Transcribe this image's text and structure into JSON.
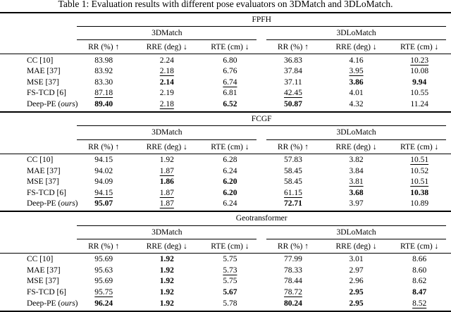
{
  "title": "Table 1: Evaluation results with different pose evaluators on 3DMatch and 3DLoMatch.",
  "columns": {
    "group_left": "3DMatch",
    "group_right": "3DLoMatch",
    "metrics": [
      "RR (%) ↑",
      "RRE (deg) ↓",
      "RTE (cm) ↓"
    ]
  },
  "chart_data": {
    "type": "table",
    "title": "Evaluation results with different pose evaluators on 3DMatch and 3DLoMatch",
    "column_groups": [
      "3DMatch",
      "3DLoMatch"
    ],
    "metric_labels": [
      "RR (%) ↑",
      "RRE (deg) ↓",
      "RTE (cm) ↓"
    ]
  },
  "sections": [
    {
      "name": "FPFH",
      "rows": [
        {
          "method": "CC [10]",
          "cells": [
            {
              "v": "83.98"
            },
            {
              "v": "2.24"
            },
            {
              "v": "6.80"
            },
            {
              "v": "36.83"
            },
            {
              "v": "4.16"
            },
            {
              "v": "10.23",
              "style": "underline"
            }
          ]
        },
        {
          "method": "MAE [37]",
          "cells": [
            {
              "v": "83.92"
            },
            {
              "v": "2.18",
              "style": "underline"
            },
            {
              "v": "6.76"
            },
            {
              "v": "37.84"
            },
            {
              "v": "3.95",
              "style": "underline"
            },
            {
              "v": "10.08"
            }
          ]
        },
        {
          "method": "MSE [37]",
          "cells": [
            {
              "v": "83.30"
            },
            {
              "v": "2.14",
              "style": "bold"
            },
            {
              "v": "6.74",
              "style": "underline"
            },
            {
              "v": "37.11"
            },
            {
              "v": "3.86",
              "style": "bold"
            },
            {
              "v": "9.94",
              "style": "bold"
            }
          ]
        },
        {
          "method": "FS-TCD [6]",
          "cells": [
            {
              "v": "87.18",
              "style": "underline"
            },
            {
              "v": "2.19"
            },
            {
              "v": "6.81"
            },
            {
              "v": "42.45",
              "style": "underline"
            },
            {
              "v": "4.01"
            },
            {
              "v": "10.55"
            }
          ]
        },
        {
          "method": "Deep-PE (",
          "note": "ours",
          "suffix": ")",
          "cells": [
            {
              "v": "89.40",
              "style": "bold"
            },
            {
              "v": "2.18",
              "style": "underline"
            },
            {
              "v": "6.52",
              "style": "bold"
            },
            {
              "v": "50.87",
              "style": "bold"
            },
            {
              "v": "4.32"
            },
            {
              "v": "11.24"
            }
          ]
        }
      ]
    },
    {
      "name": "FCGF",
      "rows": [
        {
          "method": "CC [10]",
          "cells": [
            {
              "v": "94.15"
            },
            {
              "v": "1.92"
            },
            {
              "v": "6.28"
            },
            {
              "v": "57.83"
            },
            {
              "v": "3.82"
            },
            {
              "v": "10.51",
              "style": "underline"
            }
          ]
        },
        {
          "method": "MAE [37]",
          "cells": [
            {
              "v": "94.02"
            },
            {
              "v": "1.87",
              "style": "underline"
            },
            {
              "v": "6.24"
            },
            {
              "v": "58.45"
            },
            {
              "v": "3.84"
            },
            {
              "v": "10.52"
            }
          ]
        },
        {
          "method": "MSE [37]",
          "cells": [
            {
              "v": "94.09"
            },
            {
              "v": "1.86",
              "style": "bold"
            },
            {
              "v": "6.20",
              "style": "bold"
            },
            {
              "v": "58.45"
            },
            {
              "v": "3.81",
              "style": "underline"
            },
            {
              "v": "10.51",
              "style": "underline"
            }
          ]
        },
        {
          "method": "FS-TCD [6]",
          "cells": [
            {
              "v": "94.15",
              "style": "underline"
            },
            {
              "v": "1.87",
              "style": "underline"
            },
            {
              "v": "6.20",
              "style": "bold"
            },
            {
              "v": "61.15",
              "style": "underline"
            },
            {
              "v": "3.68",
              "style": "bold"
            },
            {
              "v": "10.38",
              "style": "bold"
            }
          ]
        },
        {
          "method": "Deep-PE (",
          "note": "ours",
          "suffix": ")",
          "cells": [
            {
              "v": "95.07",
              "style": "bold"
            },
            {
              "v": "1.87",
              "style": "underline"
            },
            {
              "v": "6.24"
            },
            {
              "v": "72.71",
              "style": "bold"
            },
            {
              "v": "3.97"
            },
            {
              "v": "10.89"
            }
          ]
        }
      ]
    },
    {
      "name": "Geotransformer",
      "rows": [
        {
          "method": "CC [10]",
          "cells": [
            {
              "v": "95.69"
            },
            {
              "v": "1.92",
              "style": "bold"
            },
            {
              "v": "5.75"
            },
            {
              "v": "77.99"
            },
            {
              "v": "3.01"
            },
            {
              "v": "8.66"
            }
          ]
        },
        {
          "method": "MAE [37]",
          "cells": [
            {
              "v": "95.63"
            },
            {
              "v": "1.92",
              "style": "bold"
            },
            {
              "v": "5.73",
              "style": "underline"
            },
            {
              "v": "78.33"
            },
            {
              "v": "2.97"
            },
            {
              "v": "8.60"
            }
          ]
        },
        {
          "method": "MSE [37]",
          "cells": [
            {
              "v": "95.69"
            },
            {
              "v": "1.92",
              "style": "bold"
            },
            {
              "v": "5.75"
            },
            {
              "v": "78.44"
            },
            {
              "v": "2.96"
            },
            {
              "v": "8.62"
            }
          ]
        },
        {
          "method": "FS-TCD [6]",
          "cells": [
            {
              "v": "95.75",
              "style": "underline"
            },
            {
              "v": "1.92",
              "style": "bold"
            },
            {
              "v": "5.67",
              "style": "bold"
            },
            {
              "v": "78.72",
              "style": "underline"
            },
            {
              "v": "2.95",
              "style": "bold"
            },
            {
              "v": "8.47",
              "style": "bold"
            }
          ]
        },
        {
          "method": "Deep-PE (",
          "note": "ours",
          "suffix": ")",
          "cells": [
            {
              "v": "96.24",
              "style": "bold"
            },
            {
              "v": "1.92",
              "style": "bold"
            },
            {
              "v": "5.78"
            },
            {
              "v": "80.24",
              "style": "bold"
            },
            {
              "v": "2.95",
              "style": "bold"
            },
            {
              "v": "8.52",
              "style": "underline"
            }
          ]
        }
      ]
    }
  ]
}
